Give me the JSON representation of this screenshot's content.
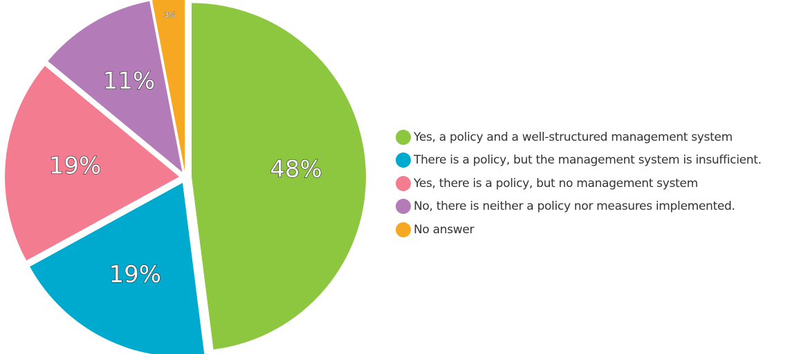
{
  "chart_data": {
    "type": "pie",
    "title": "",
    "legend_position": "right",
    "slices": [
      {
        "label": "Yes, a policy and a well-structured management system",
        "value": 48,
        "display": "48%",
        "color": "#8DC63F"
      },
      {
        "label": "There is a policy, but the management system is insufficient.",
        "value": 19,
        "display": "19%",
        "color": "#00A9CE"
      },
      {
        "label": "Yes, there is a policy, but no management system",
        "value": 19,
        "display": "19%",
        "color": "#F47C91"
      },
      {
        "label": "No, there is neither a policy nor measures implemented.",
        "value": 11,
        "display": "11%",
        "color": "#B37BB8"
      },
      {
        "label": "No answer",
        "value": 3,
        "display": "3%",
        "color": "#F7A823"
      }
    ]
  }
}
